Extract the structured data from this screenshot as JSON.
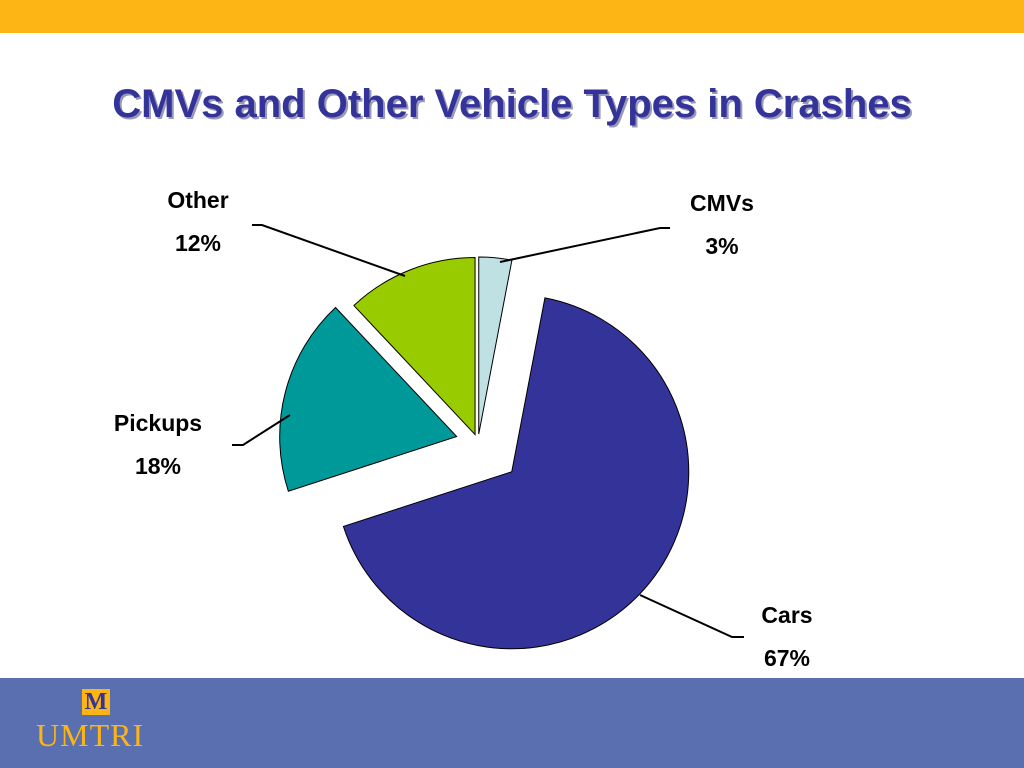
{
  "chart_data": {
    "type": "pie",
    "title": "CMVs and Other Vehicle Types in Crashes",
    "categories": [
      "CMVs",
      "Cars",
      "Pickups",
      "Other"
    ],
    "values": [
      3,
      67,
      18,
      12
    ],
    "value_labels": [
      "3%",
      "67%",
      "18%",
      "12%"
    ],
    "colors": [
      "#bfe1e4",
      "#333399",
      "#009999",
      "#99cc00"
    ]
  },
  "logo": {
    "mark": "M",
    "text": "UMTRI"
  }
}
